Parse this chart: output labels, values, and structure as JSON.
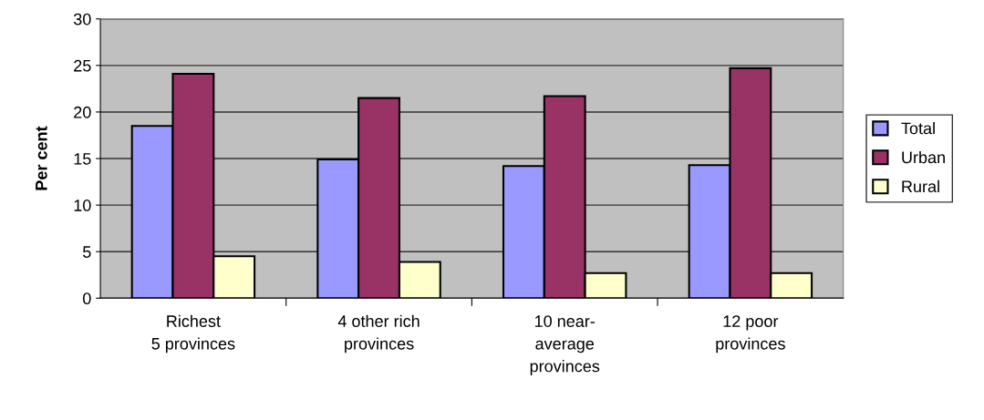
{
  "chart_data": {
    "type": "bar",
    "ylabel": "Per cent",
    "categories": [
      "Richest\n5 provinces",
      "4 other rich\nprovinces",
      "10 near-\naverage\nprovinces",
      "12 poor\nprovinces"
    ],
    "series": [
      {
        "name": "Total",
        "color": "#9999ff",
        "values": [
          18.5,
          14.9,
          14.2,
          14.3
        ]
      },
      {
        "name": "Urban",
        "color": "#993366",
        "values": [
          24.1,
          21.5,
          21.7,
          24.7
        ]
      },
      {
        "name": "Rural",
        "color": "#ffffcc",
        "values": [
          4.5,
          3.9,
          2.7,
          2.7
        ]
      }
    ],
    "ylim": [
      0,
      30
    ],
    "yticks": [
      0,
      5,
      10,
      15,
      20,
      25,
      30
    ],
    "grid": "y",
    "legend": "right"
  }
}
